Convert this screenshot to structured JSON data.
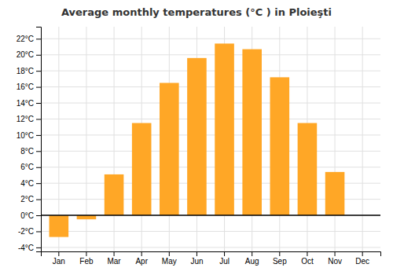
{
  "chart_data": {
    "type": "bar",
    "title": "Average monthly temperatures (°C ) in Ploieşti",
    "categories": [
      "Jan",
      "Feb",
      "Mar",
      "Apr",
      "May",
      "Jun",
      "Jul",
      "Aug",
      "Sep",
      "Oct",
      "Nov",
      "Dec"
    ],
    "values": [
      -2.7,
      -0.5,
      5.1,
      11.5,
      16.5,
      19.6,
      21.4,
      20.7,
      17.2,
      11.5,
      5.4,
      0.0
    ],
    "color": "#FFA726",
    "ylim": [
      -4.5,
      23.5
    ],
    "yticks": [
      {
        "value": -4,
        "label": "-4°C"
      },
      {
        "value": -2,
        "label": "-2°C"
      },
      {
        "value": 0,
        "label": "0°C"
      },
      {
        "value": 2,
        "label": "2°C"
      },
      {
        "value": 4,
        "label": "4°C"
      },
      {
        "value": 6,
        "label": "6°C"
      },
      {
        "value": 8,
        "label": "8°C"
      },
      {
        "value": 10,
        "label": "10°C"
      },
      {
        "value": 12,
        "label": "12°C"
      },
      {
        "value": 14,
        "label": "14°C"
      },
      {
        "value": 16,
        "label": "16°C"
      },
      {
        "value": 18,
        "label": "18°C"
      },
      {
        "value": 20,
        "label": "20°C"
      },
      {
        "value": 22,
        "label": "22°C"
      }
    ],
    "grid": true
  }
}
